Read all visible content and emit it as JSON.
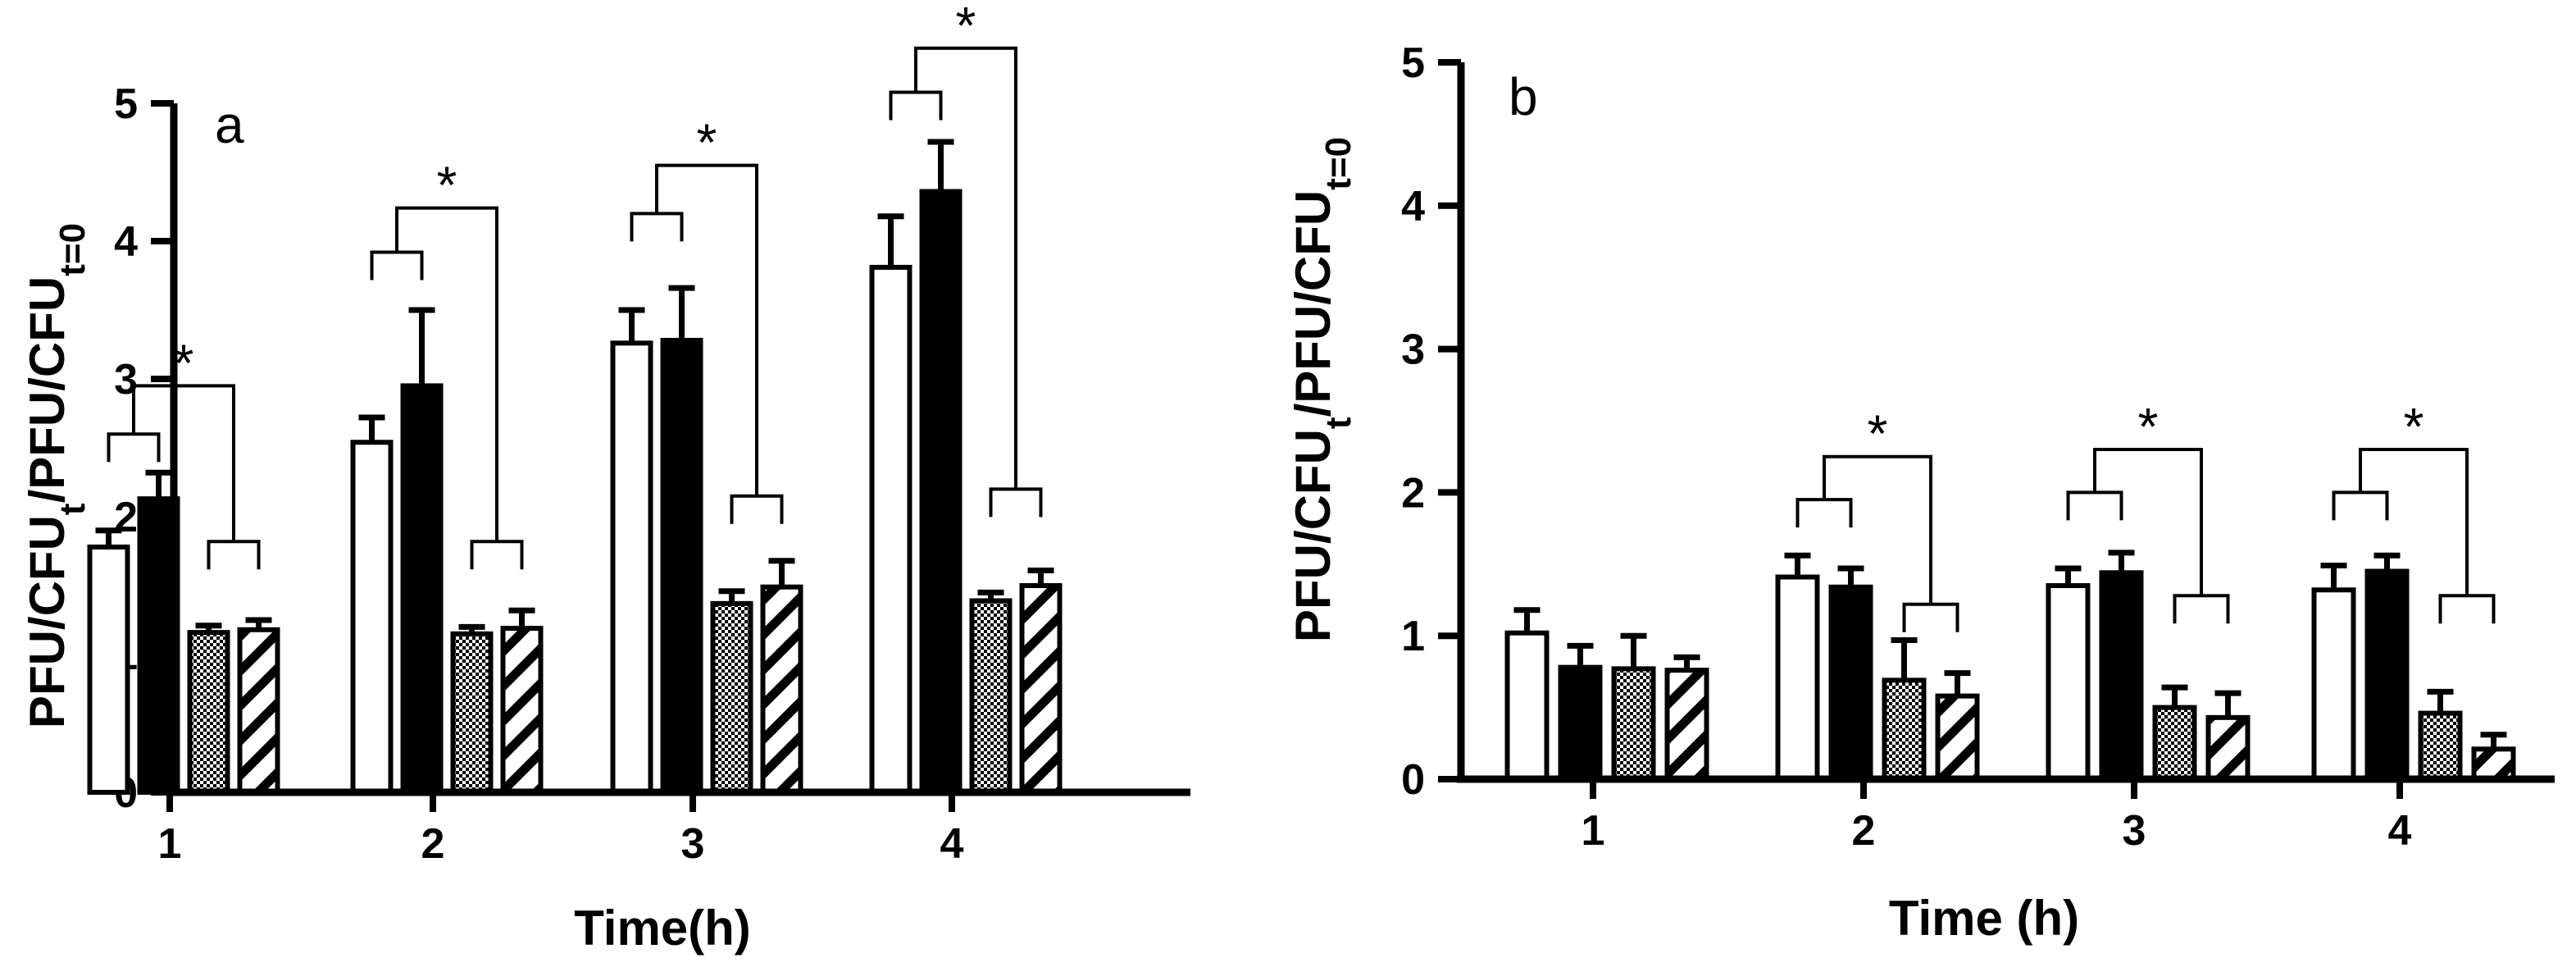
{
  "chart_data": [
    {
      "type": "bar",
      "panel_label": "a",
      "categories": [
        "1",
        "2",
        "3",
        "4"
      ],
      "xlabel": "Time(h)",
      "ylabel": "PFU/CFU",
      "ylabel_sub1": "t",
      "ylabel_mid": "/PFU/CFU",
      "ylabel_sub2": "t=0",
      "ylim": [
        0,
        5
      ],
      "yticks": [
        "0",
        "1",
        "2",
        "3",
        "4",
        "5"
      ],
      "series": [
        {
          "pattern": "open",
          "values": [
            1.78,
            2.54,
            3.26,
            3.81
          ],
          "errors": [
            0.12,
            0.18,
            0.24,
            0.37
          ]
        },
        {
          "pattern": "filled",
          "values": [
            2.13,
            2.95,
            3.28,
            4.36
          ],
          "errors": [
            0.19,
            0.55,
            0.38,
            0.36
          ]
        },
        {
          "pattern": "checkered",
          "values": [
            1.16,
            1.15,
            1.37,
            1.39
          ],
          "errors": [
            0.05,
            0.05,
            0.09,
            0.06
          ]
        },
        {
          "pattern": "hatched",
          "values": [
            1.18,
            1.19,
            1.49,
            1.5
          ],
          "errors": [
            0.07,
            0.13,
            0.19,
            0.11
          ]
        }
      ],
      "significance": [
        {
          "category": "1",
          "label": "*",
          "left_bracket_y": 2.6,
          "right_bracket_y": 1.82,
          "top_y": 2.95
        },
        {
          "category": "2",
          "label": "*",
          "left_bracket_y": 3.92,
          "right_bracket_y": 1.82,
          "top_y": 4.24
        },
        {
          "category": "3",
          "label": "*",
          "left_bracket_y": 4.2,
          "right_bracket_y": 2.15,
          "top_y": 4.55
        },
        {
          "category": "4",
          "label": "*",
          "left_bracket_y": 5.08,
          "right_bracket_y": 2.2,
          "top_y": 5.4
        }
      ]
    },
    {
      "type": "bar",
      "panel_label": "b",
      "categories": [
        "1",
        "2",
        "3",
        "4"
      ],
      "xlabel": "Time (h)",
      "ylabel": "PFU/CFU",
      "ylabel_sub1": "t",
      "ylabel_mid": "/PFU/CFU",
      "ylabel_sub2": "t=0",
      "ylim": [
        0,
        5
      ],
      "yticks": [
        "0",
        "1",
        "2",
        "3",
        "4",
        "5"
      ],
      "series": [
        {
          "pattern": "open",
          "values": [
            1.02,
            1.41,
            1.35,
            1.32
          ],
          "errors": [
            0.16,
            0.15,
            0.12,
            0.17
          ]
        },
        {
          "pattern": "filled",
          "values": [
            0.78,
            1.34,
            1.44,
            1.45
          ],
          "errors": [
            0.15,
            0.13,
            0.14,
            0.11
          ]
        },
        {
          "pattern": "checkered",
          "values": [
            0.77,
            0.69,
            0.5,
            0.46
          ],
          "errors": [
            0.23,
            0.28,
            0.14,
            0.15
          ]
        },
        {
          "pattern": "hatched",
          "values": [
            0.76,
            0.58,
            0.43,
            0.21
          ],
          "errors": [
            0.09,
            0.16,
            0.17,
            0.1
          ]
        }
      ],
      "significance": [
        {
          "category": "2",
          "label": "*",
          "left_bracket_y": 1.95,
          "right_bracket_y": 1.22,
          "top_y": 2.25
        },
        {
          "category": "3",
          "label": "*",
          "left_bracket_y": 2.0,
          "right_bracket_y": 1.28,
          "top_y": 2.3
        },
        {
          "category": "4",
          "label": "*",
          "left_bracket_y": 2.0,
          "right_bracket_y": 1.28,
          "top_y": 2.3
        }
      ]
    }
  ]
}
